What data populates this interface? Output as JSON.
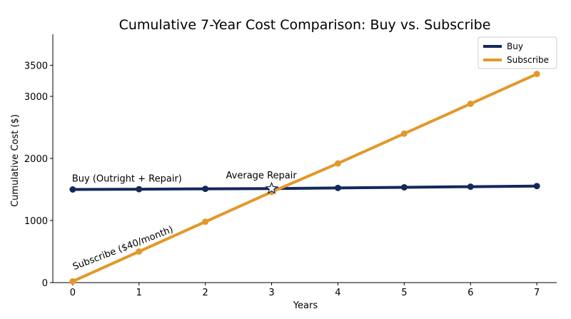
{
  "chart_data": {
    "type": "line",
    "title": "Cumulative 7-Year Cost Comparison: Buy vs. Subscribe",
    "xlabel": "Years",
    "ylabel": "Cumulative Cost ($)",
    "xlim": [
      -0.3,
      7.3
    ],
    "ylim": [
      0,
      4000
    ],
    "xticks": [
      0,
      1,
      2,
      3,
      4,
      5,
      6,
      7
    ],
    "yticks": [
      0,
      1000,
      2000,
      3000,
      3500
    ],
    "grid": false,
    "legend_position": "top-right",
    "x": [
      0,
      1,
      2,
      3,
      4,
      5,
      6,
      7
    ],
    "series": [
      {
        "name": "Buy",
        "color": "#13295b",
        "values": [
          1500,
          1505,
          1510,
          1515,
          1525,
          1535,
          1545,
          1555
        ]
      },
      {
        "name": "Subscribe",
        "color": "#e3982a",
        "values": [
          20,
          500,
          980,
          1460,
          1920,
          2400,
          2880,
          3360
        ]
      }
    ],
    "annotations": [
      {
        "text": "Buy (Outright + Repair)",
        "x": 0,
        "y": 1500
      },
      {
        "text": "Subscribe ($40/month)",
        "x": 0,
        "y": 20
      },
      {
        "text": "Average Repair",
        "x": 3,
        "y": 1515,
        "marker": "star"
      }
    ]
  }
}
